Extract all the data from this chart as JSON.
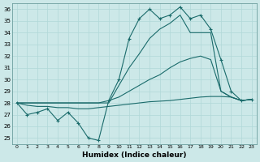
{
  "xlabel": "Humidex (Indice chaleur)",
  "xlim": [
    -0.5,
    23.5
  ],
  "ylim": [
    24.5,
    36.5
  ],
  "yticks": [
    25,
    26,
    27,
    28,
    29,
    30,
    31,
    32,
    33,
    34,
    35,
    36
  ],
  "xticks": [
    0,
    1,
    2,
    3,
    4,
    5,
    6,
    7,
    8,
    9,
    10,
    11,
    12,
    13,
    14,
    15,
    16,
    17,
    18,
    19,
    20,
    21,
    22,
    23
  ],
  "bg_color": "#cce8e8",
  "grid_color": "#b0d8d8",
  "line_color": "#1a6b6b",
  "series": {
    "curve_zigzag": [
      28.0,
      27.0,
      27.2,
      27.5,
      26.5,
      27.2,
      26.3,
      25.0,
      24.8,
      28.2,
      30.0,
      33.5,
      35.2,
      36.0,
      35.2,
      35.5,
      36.2,
      35.2,
      35.5,
      34.3,
      31.7,
      29.0,
      28.2,
      28.3
    ],
    "curve_upper": [
      28.0,
      28.0,
      28.0,
      28.0,
      28.0,
      28.0,
      28.0,
      28.0,
      28.0,
      28.0,
      29.5,
      31.0,
      32.2,
      33.5,
      34.3,
      34.8,
      35.5,
      34.0,
      34.0,
      34.0,
      29.0,
      28.5,
      28.2,
      28.3
    ],
    "curve_mid": [
      28.0,
      28.0,
      28.0,
      28.0,
      28.0,
      28.0,
      28.0,
      28.0,
      28.0,
      28.2,
      28.5,
      29.0,
      29.5,
      30.0,
      30.4,
      31.0,
      31.5,
      31.8,
      32.0,
      31.7,
      29.0,
      28.5,
      28.2,
      28.3
    ],
    "curve_lower": [
      28.0,
      27.8,
      27.7,
      27.7,
      27.6,
      27.6,
      27.5,
      27.5,
      27.6,
      27.7,
      27.8,
      27.9,
      28.0,
      28.1,
      28.15,
      28.2,
      28.3,
      28.4,
      28.5,
      28.55,
      28.55,
      28.5,
      28.2,
      28.3
    ]
  }
}
